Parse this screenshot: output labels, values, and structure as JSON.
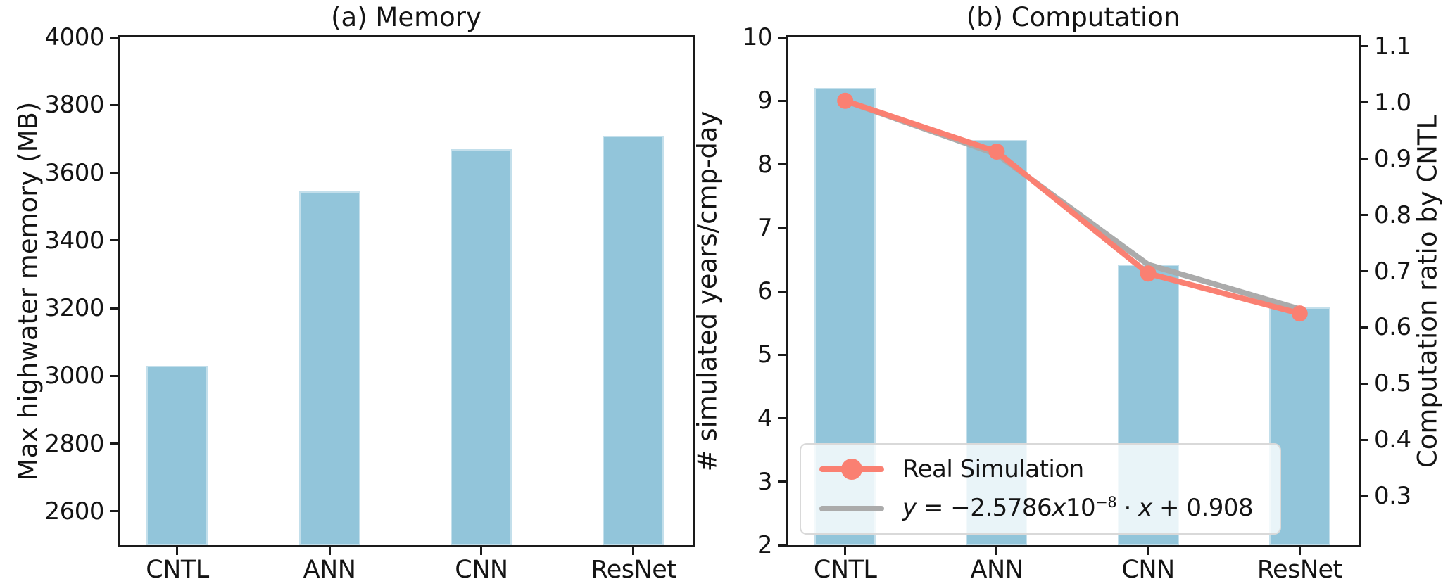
{
  "figure": {
    "background": "#ffffff",
    "bar_color": "#92c5da",
    "accent_orange": "#fa8072",
    "accent_gray": "#ababab",
    "axis_color": "#1a1a1a"
  },
  "chart_data": [
    {
      "type": "bar",
      "title": "(a) Memory",
      "ylabel": "Max highwater memory (MB)",
      "xlabel": "",
      "categories": [
        "CNTL",
        "ANN",
        "CNN",
        "ResNet"
      ],
      "values": [
        3030,
        3545,
        3670,
        3710
      ],
      "ylim": [
        2500,
        4000
      ],
      "yticks": [
        2600,
        2800,
        3000,
        3200,
        3400,
        3600,
        3800,
        4000
      ],
      "ytick_labels": [
        "2600",
        "2800",
        "3000",
        "3200",
        "3400",
        "3600",
        "3800",
        "4000"
      ],
      "grid": false,
      "bar_color": "#92c5da"
    },
    {
      "type": "bar+line",
      "title": "(b) Computation",
      "ylabel_left": "# simulated years/cmp-day",
      "ylabel_right": "Computation ratio by CNTL",
      "categories": [
        "CNTL",
        "ANN",
        "CNN",
        "ResNet"
      ],
      "bar_values": [
        9.2,
        8.38,
        6.42,
        5.75
      ],
      "bar_color": "#92c5da",
      "ylim_left": [
        2,
        10
      ],
      "yticks_left": [
        2,
        3,
        4,
        5,
        6,
        7,
        8,
        9,
        10
      ],
      "ytick_labels_left": [
        "2",
        "3",
        "4",
        "5",
        "6",
        "7",
        "8",
        "9",
        "10"
      ],
      "ylim_right": [
        0.2125,
        1.11625
      ],
      "yticks_right": [
        0.3,
        0.4,
        0.5,
        0.6,
        0.7,
        0.8,
        0.9,
        1.0,
        1.1
      ],
      "ytick_labels_right": [
        "0.3",
        "0.4",
        "0.5",
        "0.6",
        "0.7",
        "0.8",
        "0.9",
        "1.0",
        "1.1"
      ],
      "grid": false,
      "legend_position": "lower left",
      "series": [
        {
          "name": "Real Simulation",
          "color": "#fa8072",
          "marker": "circle",
          "values": [
            9.0,
            8.2,
            6.28,
            5.65
          ],
          "ratio_values": [
            1.0,
            0.91,
            0.7,
            0.63
          ]
        },
        {
          "name": "y = −2.5786x10⁻⁸ · x + 0.908",
          "color": "#ababab",
          "marker": "none",
          "values": [
            9.0,
            8.16,
            6.42,
            5.72
          ],
          "equation_parts": [
            {
              "t": "y",
              "s": "i"
            },
            {
              "t": " = −2.5786",
              "s": "r"
            },
            {
              "t": "x",
              "s": "i"
            },
            {
              "t": "10",
              "s": "r"
            },
            {
              "t": "−8",
              "s": "sup"
            },
            {
              "t": " · ",
              "s": "r"
            },
            {
              "t": "x",
              "s": "i"
            },
            {
              "t": " + 0.908",
              "s": "r"
            }
          ]
        }
      ]
    }
  ]
}
